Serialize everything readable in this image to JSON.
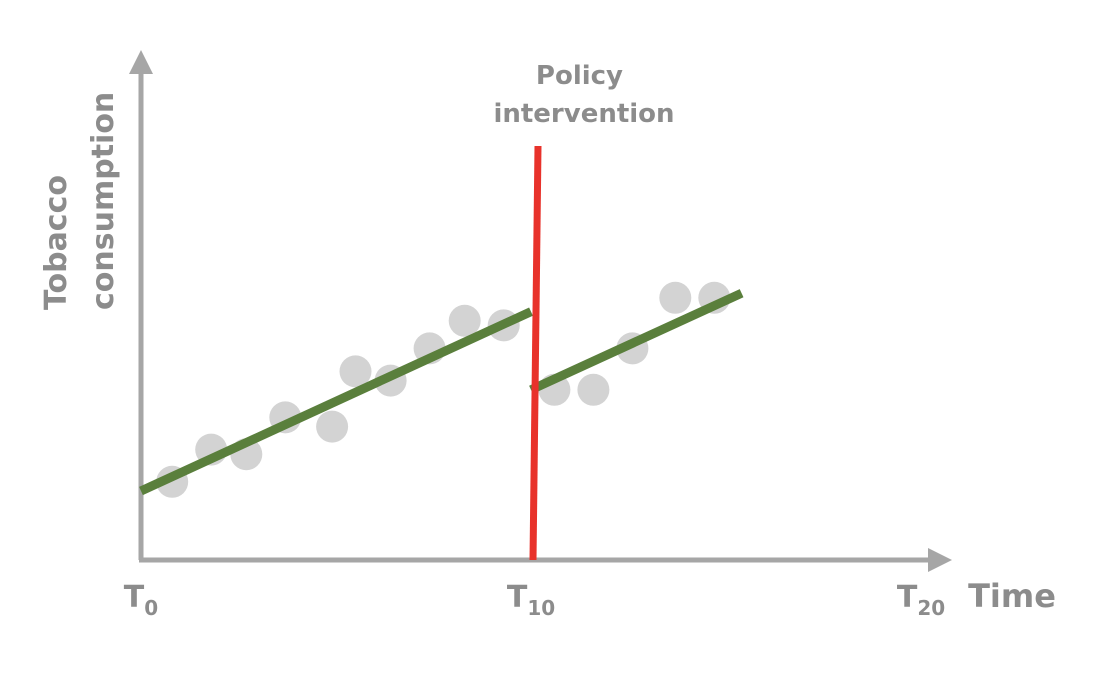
{
  "chart_data": {
    "type": "scatter",
    "ylabel_lines": [
      "Tobacco",
      "consumption"
    ],
    "xlabel": "Time",
    "x_ticks": [
      {
        "base": "T",
        "sub": "0",
        "x": 0
      },
      {
        "base": "T",
        "sub": "10",
        "x": 10
      },
      {
        "base": "T",
        "sub": "20",
        "x": 20
      }
    ],
    "xlim": [
      0,
      20
    ],
    "ylim": [
      0,
      100
    ],
    "intervention": {
      "x": 10,
      "label_lines": [
        "Policy",
        "intervention"
      ],
      "color": "#e8322b"
    },
    "points": [
      {
        "x": 0.8,
        "y": 17
      },
      {
        "x": 1.8,
        "y": 24
      },
      {
        "x": 2.7,
        "y": 23
      },
      {
        "x": 3.7,
        "y": 31
      },
      {
        "x": 4.9,
        "y": 29
      },
      {
        "x": 5.5,
        "y": 41
      },
      {
        "x": 6.4,
        "y": 39
      },
      {
        "x": 7.4,
        "y": 46
      },
      {
        "x": 8.3,
        "y": 52
      },
      {
        "x": 9.3,
        "y": 51
      },
      {
        "x": 10.6,
        "y": 37
      },
      {
        "x": 11.6,
        "y": 37
      },
      {
        "x": 12.6,
        "y": 46
      },
      {
        "x": 13.7,
        "y": 57
      },
      {
        "x": 14.7,
        "y": 57
      }
    ],
    "trend_lines": [
      {
        "x": [
          0,
          10
        ],
        "y": [
          15,
          54
        ]
      },
      {
        "x": [
          10,
          15.4
        ],
        "y": [
          37,
          58
        ]
      }
    ],
    "colors": {
      "axis": "#a6a6a6",
      "points": "#d3d3d3",
      "trend": "#5a7f3c",
      "text": "#8c8c8c"
    }
  }
}
